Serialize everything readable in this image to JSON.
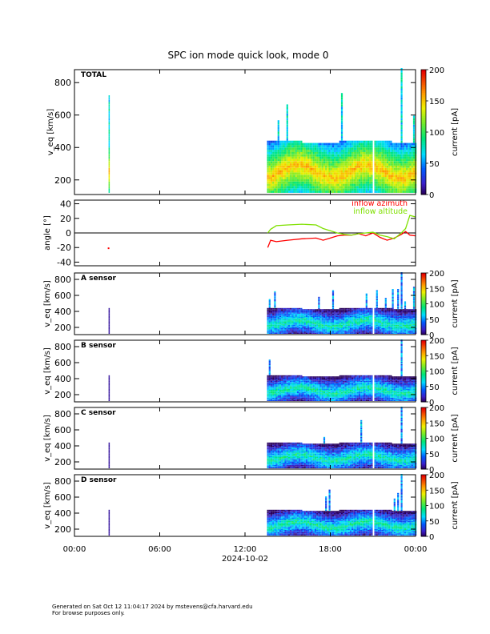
{
  "title": "SPC ion mode quick look, mode 0",
  "x_date_label": "2024-10-02",
  "footer": {
    "line1": "Generated on Sat Oct 12 11:04:17 2024 by mstevens@cfa.harvard.edu",
    "line2": "For browse purposes only."
  },
  "chart_data": [
    {
      "type": "heatmap",
      "panel_label": "TOTAL",
      "ylabel": "v_eq [km/s]",
      "ylim": [
        110,
        880
      ],
      "yticks": [
        200,
        400,
        600,
        800
      ],
      "xlim": [
        0,
        24
      ],
      "xtick_labels": [
        "00:00",
        "06:00",
        "12:00",
        "18:00",
        "00:00"
      ],
      "xticks": [
        0,
        6,
        12,
        18,
        24
      ],
      "colorbar": {
        "label": "current [pA]",
        "range": [
          0,
          200
        ],
        "ticks": [
          0,
          50,
          100,
          150,
          200
        ]
      },
      "data_intervals_hours": [
        [
          2.4,
          2.4
        ],
        [
          13.55,
          20.9
        ],
        [
          21.1,
          24
        ]
      ],
      "typical_speed_band_kms": [
        130,
        440
      ],
      "peak_current_pA": 180
    },
    {
      "type": "line",
      "ylabel": "angle [°]",
      "ylim": [
        -45,
        45
      ],
      "yticks": [
        -40,
        -20,
        0,
        20,
        40
      ],
      "xlim": [
        0,
        24
      ],
      "series": [
        {
          "name": "inflow azimuth",
          "color": "#ff0000",
          "x": [
            2.4,
            13.6,
            13.8,
            14.2,
            15,
            16,
            17,
            17.5,
            18,
            18.5,
            19,
            19.5,
            20,
            20.5,
            21,
            21.5,
            22,
            22.5,
            23,
            23.3,
            23.6,
            24
          ],
          "values": [
            -21,
            -20,
            -10,
            -12,
            -10,
            -8,
            -7,
            -10,
            -7,
            -4,
            -3,
            -3,
            -1,
            -4,
            0,
            -6,
            -10,
            -7,
            -2,
            2,
            -3,
            -4
          ]
        },
        {
          "name": "inflow altitude",
          "color": "#7fe000",
          "x": [
            13.6,
            13.8,
            14.2,
            15,
            16,
            17,
            17.5,
            18,
            18.5,
            19,
            19.5,
            20,
            20.5,
            21,
            21.5,
            22,
            22.5,
            23,
            23.3,
            23.6,
            24
          ],
          "values": [
            0,
            5,
            10,
            11,
            12,
            11,
            6,
            3,
            0,
            -2,
            -3,
            -1,
            0,
            1,
            -3,
            -5,
            -8,
            0,
            6,
            24,
            22
          ]
        }
      ]
    },
    {
      "type": "heatmap",
      "panel_label": "A sensor",
      "ylabel": "v_eq [km/s]",
      "ylim": [
        110,
        880
      ],
      "yticks": [
        200,
        400,
        600,
        800
      ],
      "colorbar": {
        "label": "current [pA]",
        "range": [
          0,
          200
        ],
        "ticks": [
          0,
          50,
          100,
          150,
          200
        ]
      },
      "data_intervals_hours": [
        [
          2.4,
          2.4
        ],
        [
          13.55,
          20.9
        ],
        [
          21.1,
          24
        ]
      ]
    },
    {
      "type": "heatmap",
      "panel_label": "B sensor",
      "ylabel": "v_eq [km/s]",
      "ylim": [
        110,
        880
      ],
      "yticks": [
        200,
        400,
        600,
        800
      ],
      "colorbar": {
        "label": "current [pA]",
        "range": [
          0,
          200
        ],
        "ticks": [
          0,
          50,
          100,
          150,
          200
        ]
      },
      "data_intervals_hours": [
        [
          2.4,
          2.4
        ],
        [
          13.55,
          20.9
        ],
        [
          21.1,
          24
        ]
      ]
    },
    {
      "type": "heatmap",
      "panel_label": "C sensor",
      "ylabel": "v_eq [km/s]",
      "ylim": [
        110,
        880
      ],
      "yticks": [
        200,
        400,
        600,
        800
      ],
      "colorbar": {
        "label": "current [pA]",
        "range": [
          0,
          200
        ],
        "ticks": [
          0,
          50,
          100,
          150,
          200
        ]
      },
      "data_intervals_hours": [
        [
          2.4,
          2.4
        ],
        [
          13.55,
          20.9
        ],
        [
          21.1,
          24
        ]
      ]
    },
    {
      "type": "heatmap",
      "panel_label": "D sensor",
      "ylabel": "v_eq [km/s]",
      "ylim": [
        110,
        880
      ],
      "yticks": [
        200,
        400,
        600,
        800
      ],
      "colorbar": {
        "label": "current [pA]",
        "range": [
          0,
          200
        ],
        "ticks": [
          0,
          50,
          100,
          150,
          200
        ]
      },
      "data_intervals_hours": [
        [
          2.4,
          2.4
        ],
        [
          13.55,
          20.9
        ],
        [
          21.1,
          24
        ]
      ]
    }
  ]
}
